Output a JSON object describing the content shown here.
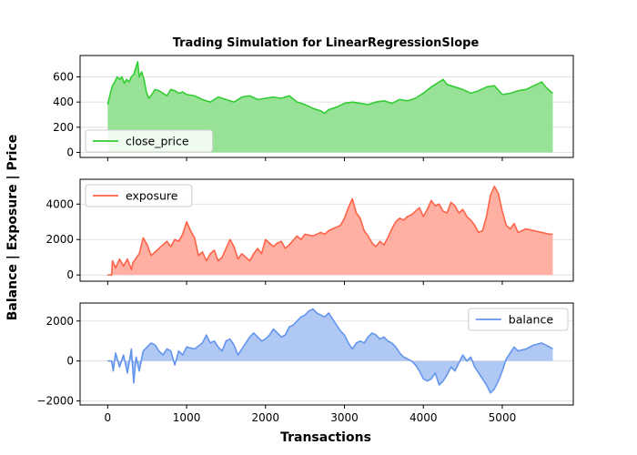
{
  "chart_data": {
    "type": "area",
    "title": "Trading Simulation for LinearRegressionSlope",
    "xlabel": "Transactions",
    "ylabel": "Balance | Exposure | Price",
    "xlim": [
      -350,
      5900
    ],
    "x_ticks": [
      0,
      1000,
      2000,
      3000,
      4000,
      5000
    ],
    "grid": "horizontal",
    "panels": [
      {
        "series_name": "close_price",
        "color": "#32cd32",
        "fill_color": "#98e298",
        "legend_position": "lower-left",
        "ylim": [
          -40,
          770
        ],
        "y_ticks": [
          0,
          200,
          400,
          600
        ],
        "points": [
          [
            0,
            380
          ],
          [
            30,
            460
          ],
          [
            60,
            530
          ],
          [
            90,
            560
          ],
          [
            120,
            600
          ],
          [
            150,
            580
          ],
          [
            180,
            600
          ],
          [
            210,
            550
          ],
          [
            240,
            580
          ],
          [
            270,
            560
          ],
          [
            300,
            600
          ],
          [
            330,
            620
          ],
          [
            360,
            680
          ],
          [
            380,
            720
          ],
          [
            400,
            600
          ],
          [
            430,
            640
          ],
          [
            460,
            580
          ],
          [
            490,
            480
          ],
          [
            520,
            430
          ],
          [
            560,
            460
          ],
          [
            600,
            500
          ],
          [
            650,
            490
          ],
          [
            700,
            470
          ],
          [
            750,
            450
          ],
          [
            800,
            500
          ],
          [
            850,
            490
          ],
          [
            900,
            470
          ],
          [
            950,
            480
          ],
          [
            1000,
            460
          ],
          [
            1100,
            450
          ],
          [
            1200,
            420
          ],
          [
            1300,
            400
          ],
          [
            1400,
            440
          ],
          [
            1500,
            420
          ],
          [
            1600,
            400
          ],
          [
            1700,
            440
          ],
          [
            1800,
            450
          ],
          [
            1900,
            420
          ],
          [
            2000,
            430
          ],
          [
            2100,
            440
          ],
          [
            2200,
            430
          ],
          [
            2300,
            450
          ],
          [
            2400,
            400
          ],
          [
            2500,
            380
          ],
          [
            2600,
            350
          ],
          [
            2700,
            330
          ],
          [
            2750,
            310
          ],
          [
            2800,
            340
          ],
          [
            2900,
            360
          ],
          [
            3000,
            390
          ],
          [
            3100,
            400
          ],
          [
            3200,
            390
          ],
          [
            3300,
            380
          ],
          [
            3400,
            400
          ],
          [
            3500,
            410
          ],
          [
            3600,
            390
          ],
          [
            3700,
            420
          ],
          [
            3800,
            410
          ],
          [
            3900,
            430
          ],
          [
            4000,
            470
          ],
          [
            4100,
            520
          ],
          [
            4200,
            560
          ],
          [
            4250,
            580
          ],
          [
            4300,
            540
          ],
          [
            4400,
            520
          ],
          [
            4500,
            500
          ],
          [
            4600,
            470
          ],
          [
            4700,
            490
          ],
          [
            4800,
            520
          ],
          [
            4900,
            530
          ],
          [
            5000,
            460
          ],
          [
            5100,
            470
          ],
          [
            5200,
            490
          ],
          [
            5300,
            500
          ],
          [
            5400,
            530
          ],
          [
            5500,
            560
          ],
          [
            5550,
            520
          ],
          [
            5600,
            490
          ],
          [
            5640,
            470
          ]
        ]
      },
      {
        "series_name": "exposure",
        "color": "#ff6347",
        "fill_color": "#ffb0a3",
        "legend_position": "upper-left",
        "ylim": [
          -350,
          5400
        ],
        "y_ticks": [
          0,
          2000,
          4000
        ],
        "points": [
          [
            0,
            0
          ],
          [
            50,
            0
          ],
          [
            60,
            800
          ],
          [
            100,
            400
          ],
          [
            150,
            900
          ],
          [
            200,
            500
          ],
          [
            250,
            900
          ],
          [
            300,
            300
          ],
          [
            320,
            700
          ],
          [
            400,
            1200
          ],
          [
            450,
            2100
          ],
          [
            500,
            1700
          ],
          [
            550,
            1100
          ],
          [
            600,
            1300
          ],
          [
            650,
            1500
          ],
          [
            700,
            1700
          ],
          [
            750,
            1900
          ],
          [
            800,
            1600
          ],
          [
            850,
            2000
          ],
          [
            900,
            1900
          ],
          [
            950,
            2300
          ],
          [
            1000,
            3000
          ],
          [
            1050,
            2500
          ],
          [
            1100,
            2100
          ],
          [
            1150,
            1100
          ],
          [
            1200,
            1300
          ],
          [
            1250,
            800
          ],
          [
            1300,
            1200
          ],
          [
            1350,
            1400
          ],
          [
            1400,
            800
          ],
          [
            1450,
            1000
          ],
          [
            1500,
            1500
          ],
          [
            1550,
            2000
          ],
          [
            1600,
            1600
          ],
          [
            1650,
            900
          ],
          [
            1700,
            1200
          ],
          [
            1750,
            1000
          ],
          [
            1800,
            800
          ],
          [
            1850,
            1200
          ],
          [
            1900,
            1500
          ],
          [
            1950,
            1200
          ],
          [
            2000,
            2000
          ],
          [
            2050,
            1800
          ],
          [
            2100,
            1600
          ],
          [
            2150,
            1800
          ],
          [
            2200,
            1900
          ],
          [
            2250,
            1500
          ],
          [
            2300,
            1700
          ],
          [
            2400,
            2200
          ],
          [
            2450,
            2000
          ],
          [
            2500,
            2300
          ],
          [
            2600,
            2200
          ],
          [
            2700,
            2400
          ],
          [
            2750,
            2300
          ],
          [
            2800,
            2500
          ],
          [
            2850,
            2600
          ],
          [
            2900,
            2700
          ],
          [
            2950,
            2800
          ],
          [
            3000,
            3200
          ],
          [
            3050,
            3800
          ],
          [
            3100,
            4300
          ],
          [
            3150,
            3500
          ],
          [
            3200,
            3200
          ],
          [
            3250,
            2500
          ],
          [
            3300,
            2200
          ],
          [
            3350,
            1800
          ],
          [
            3400,
            1600
          ],
          [
            3450,
            1900
          ],
          [
            3500,
            1700
          ],
          [
            3550,
            2100
          ],
          [
            3600,
            2600
          ],
          [
            3650,
            3000
          ],
          [
            3700,
            3200
          ],
          [
            3750,
            3100
          ],
          [
            3800,
            3300
          ],
          [
            3850,
            3400
          ],
          [
            3900,
            3600
          ],
          [
            3950,
            3800
          ],
          [
            4000,
            3300
          ],
          [
            4050,
            3700
          ],
          [
            4100,
            4200
          ],
          [
            4150,
            3900
          ],
          [
            4200,
            4000
          ],
          [
            4250,
            3600
          ],
          [
            4300,
            3500
          ],
          [
            4350,
            4100
          ],
          [
            4400,
            3900
          ],
          [
            4450,
            3500
          ],
          [
            4500,
            3700
          ],
          [
            4550,
            3300
          ],
          [
            4600,
            3100
          ],
          [
            4650,
            2800
          ],
          [
            4700,
            2400
          ],
          [
            4750,
            2500
          ],
          [
            4800,
            3300
          ],
          [
            4850,
            4500
          ],
          [
            4900,
            5000
          ],
          [
            4950,
            4600
          ],
          [
            5000,
            3600
          ],
          [
            5050,
            2800
          ],
          [
            5100,
            2600
          ],
          [
            5150,
            2900
          ],
          [
            5200,
            2400
          ],
          [
            5300,
            2600
          ],
          [
            5400,
            2500
          ],
          [
            5500,
            2400
          ],
          [
            5600,
            2300
          ],
          [
            5640,
            2300
          ]
        ]
      },
      {
        "series_name": "balance",
        "color": "#6495ed",
        "fill_color": "#b0c8f4",
        "legend_position": "upper-right",
        "ylim": [
          -2200,
          2900
        ],
        "y_ticks": [
          -2000,
          0,
          2000
        ],
        "points": [
          [
            0,
            0
          ],
          [
            50,
            0
          ],
          [
            70,
            -500
          ],
          [
            100,
            400
          ],
          [
            150,
            -300
          ],
          [
            200,
            300
          ],
          [
            250,
            -600
          ],
          [
            300,
            600
          ],
          [
            330,
            -1100
          ],
          [
            360,
            200
          ],
          [
            400,
            -500
          ],
          [
            450,
            500
          ],
          [
            500,
            700
          ],
          [
            550,
            900
          ],
          [
            600,
            800
          ],
          [
            650,
            500
          ],
          [
            700,
            300
          ],
          [
            750,
            600
          ],
          [
            800,
            500
          ],
          [
            850,
            -200
          ],
          [
            900,
            500
          ],
          [
            950,
            300
          ],
          [
            1000,
            700
          ],
          [
            1100,
            600
          ],
          [
            1200,
            900
          ],
          [
            1250,
            1300
          ],
          [
            1300,
            900
          ],
          [
            1350,
            1000
          ],
          [
            1400,
            700
          ],
          [
            1450,
            500
          ],
          [
            1500,
            1000
          ],
          [
            1550,
            1100
          ],
          [
            1600,
            800
          ],
          [
            1650,
            300
          ],
          [
            1700,
            600
          ],
          [
            1750,
            900
          ],
          [
            1800,
            1200
          ],
          [
            1850,
            1400
          ],
          [
            1900,
            1200
          ],
          [
            1950,
            1000
          ],
          [
            2000,
            1100
          ],
          [
            2050,
            1300
          ],
          [
            2100,
            1600
          ],
          [
            2150,
            1400
          ],
          [
            2200,
            1200
          ],
          [
            2250,
            1300
          ],
          [
            2300,
            1700
          ],
          [
            2350,
            1800
          ],
          [
            2400,
            2000
          ],
          [
            2450,
            2200
          ],
          [
            2500,
            2300
          ],
          [
            2550,
            2500
          ],
          [
            2600,
            2600
          ],
          [
            2650,
            2400
          ],
          [
            2700,
            2300
          ],
          [
            2750,
            2200
          ],
          [
            2800,
            2400
          ],
          [
            2850,
            2100
          ],
          [
            2900,
            1800
          ],
          [
            2950,
            1500
          ],
          [
            3000,
            1300
          ],
          [
            3050,
            900
          ],
          [
            3100,
            600
          ],
          [
            3150,
            900
          ],
          [
            3200,
            1000
          ],
          [
            3250,
            900
          ],
          [
            3300,
            1200
          ],
          [
            3350,
            1400
          ],
          [
            3400,
            1300
          ],
          [
            3450,
            1100
          ],
          [
            3500,
            1200
          ],
          [
            3550,
            1000
          ],
          [
            3600,
            900
          ],
          [
            3650,
            700
          ],
          [
            3700,
            400
          ],
          [
            3750,
            200
          ],
          [
            3800,
            100
          ],
          [
            3850,
            0
          ],
          [
            3900,
            -200
          ],
          [
            3950,
            -500
          ],
          [
            4000,
            -900
          ],
          [
            4050,
            -1000
          ],
          [
            4100,
            -900
          ],
          [
            4150,
            -600
          ],
          [
            4200,
            -1200
          ],
          [
            4250,
            -1000
          ],
          [
            4300,
            -700
          ],
          [
            4350,
            -300
          ],
          [
            4400,
            -500
          ],
          [
            4450,
            -100
          ],
          [
            4500,
            300
          ],
          [
            4550,
            0
          ],
          [
            4600,
            200
          ],
          [
            4650,
            -300
          ],
          [
            4700,
            -600
          ],
          [
            4750,
            -900
          ],
          [
            4800,
            -1200
          ],
          [
            4850,
            -1600
          ],
          [
            4900,
            -1400
          ],
          [
            4950,
            -1000
          ],
          [
            5000,
            -500
          ],
          [
            5050,
            100
          ],
          [
            5100,
            400
          ],
          [
            5150,
            700
          ],
          [
            5200,
            500
          ],
          [
            5300,
            600
          ],
          [
            5400,
            800
          ],
          [
            5500,
            900
          ],
          [
            5600,
            700
          ],
          [
            5640,
            600
          ]
        ]
      }
    ]
  }
}
